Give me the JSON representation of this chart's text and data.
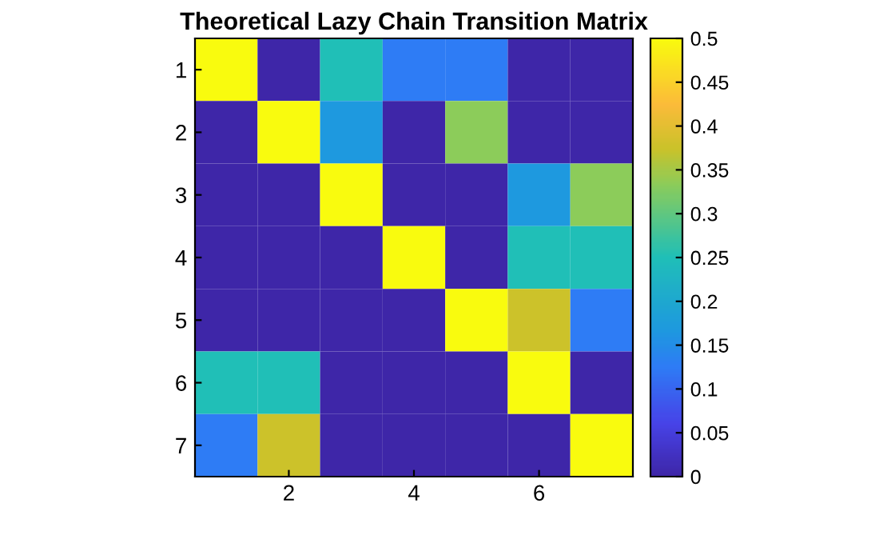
{
  "chart_data": {
    "type": "heatmap",
    "title": "Theoretical Lazy Chain Transition Matrix",
    "categories": [
      null,
      "2",
      null,
      "4",
      null,
      "6",
      null
    ],
    "y_categories": [
      "1",
      "2",
      "3",
      "4",
      "5",
      "6",
      "7"
    ],
    "cells": [
      [
        0.5,
        0,
        0.25,
        0.125,
        0.125,
        0,
        0
      ],
      [
        0,
        0.5,
        0.167,
        0,
        0.333,
        0,
        0
      ],
      [
        0,
        0,
        0.5,
        0,
        0,
        0.167,
        0.333
      ],
      [
        0,
        0,
        0,
        0.5,
        0,
        0.25,
        0.25
      ],
      [
        0,
        0,
        0,
        0,
        0.5,
        0.375,
        0.125
      ],
      [
        0.25,
        0.25,
        0,
        0,
        0,
        0.5,
        0
      ],
      [
        0.125,
        0.375,
        0,
        0,
        0,
        0,
        0.5
      ]
    ],
    "clim": [
      0,
      0.5
    ],
    "cticks": [
      0,
      0.05,
      0.1,
      0.15,
      0.2,
      0.25,
      0.3,
      0.35,
      0.4,
      0.45,
      0.5
    ]
  }
}
